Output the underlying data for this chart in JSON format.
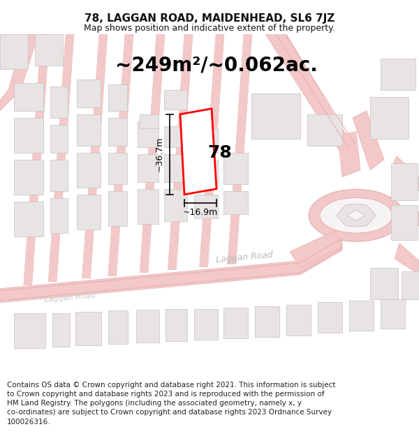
{
  "title": "78, LAGGAN ROAD, MAIDENHEAD, SL6 7JZ",
  "subtitle": "Map shows position and indicative extent of the property.",
  "area_text": "~249m²/~0.062ac.",
  "label_number": "78",
  "dim_height": "~36.7m",
  "dim_width": "~16.9m",
  "road_label_main": "Laggan Road",
  "road_label_secondary": "Laggan Road",
  "footer_line1": "Contains OS data © Crown copyright and database right 2021. This information is subject",
  "footer_line2": "to Crown copyright and database rights 2023 and is reproduced with the permission of",
  "footer_line3": "HM Land Registry. The polygons (including the associated geometry, namely x, y",
  "footer_line4": "co-ordinates) are subject to Crown copyright and database rights 2023 Ordnance Survey",
  "footer_line5": "100026316.",
  "map_bg": "#f7f4f4",
  "road_color": "#f2c8c8",
  "road_edge_color": "#e8b0b0",
  "building_fill": "#e8e4e4",
  "building_edge": "#c8c0c0",
  "highlight_color": "#ff0000",
  "dim_line_color": "#000000",
  "text_dark": "#111111",
  "text_road": "#aaaaaa",
  "title_fs": 11,
  "subtitle_fs": 9,
  "area_fs": 20,
  "number_fs": 18,
  "dim_fs": 9,
  "road_label_fs": 9,
  "footer_fs": 7.5
}
